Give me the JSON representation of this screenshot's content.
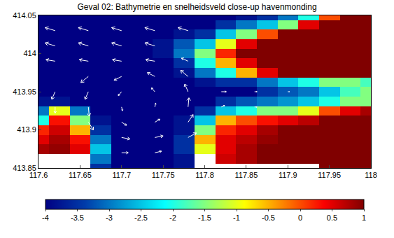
{
  "chart_data": {
    "type": "heatmap",
    "title": "Geval 02: Bathymetrie en snelheidsveld close-up havenmonding",
    "color": "jet",
    "xlim": [
      117.6,
      118
    ],
    "xticks": [
      117.6,
      117.65,
      117.7,
      117.75,
      117.8,
      117.85,
      117.9,
      117.95,
      118
    ],
    "ylim": [
      413.85,
      414.05
    ],
    "yticks": [
      413.85,
      413.9,
      413.95,
      414,
      414.05
    ],
    "zlim": [
      -4,
      1
    ],
    "zticks": [
      -4,
      -3.5,
      -3,
      -2.5,
      -2,
      -1.5,
      -1,
      -0.5,
      0,
      0.5,
      1
    ],
    "x": [
      117.6,
      117.625,
      117.65,
      117.675,
      117.7,
      117.725,
      117.75,
      117.775,
      117.8,
      117.825,
      117.85,
      117.875,
      117.9,
      117.925,
      117.95,
      117.975,
      118
    ],
    "y": [
      413.85,
      413.8625,
      413.875,
      413.8875,
      413.9,
      413.9125,
      413.925,
      413.9375,
      413.95,
      413.9625,
      413.975,
      413.9875,
      414,
      414.0125,
      414.025,
      414.0375,
      414.05
    ],
    "z": [
      [
        null,
        null,
        null,
        -3.5,
        -4,
        -4,
        -4,
        -3.8,
        null,
        null,
        null,
        null,
        null,
        null,
        1,
        1,
        1
      ],
      [
        null,
        null,
        null,
        -3,
        -4,
        -4,
        -4,
        -3.8,
        null,
        0.6,
        0.8,
        1,
        1,
        1,
        1,
        1,
        1
      ],
      [
        0.8,
        0.9,
        0.5,
        -2.5,
        -4,
        -4,
        -4,
        -3.5,
        -1,
        0.5,
        0.8,
        1,
        1,
        1,
        1,
        1,
        1
      ],
      [
        0.5,
        0.8,
        0.3,
        -3,
        -4,
        -4,
        -4,
        -3.5,
        -0.5,
        0.5,
        0.7,
        0.9,
        1,
        1,
        1,
        1,
        1
      ],
      [
        0.2,
        0.6,
        -0.5,
        -3.5,
        -4,
        -4,
        -4,
        -3.8,
        -1.5,
        0.2,
        0.5,
        0.8,
        1,
        1,
        1,
        1,
        1
      ],
      [
        -2,
        0.3,
        -1.5,
        -3.8,
        -4,
        -4,
        -4,
        -3.8,
        -2.5,
        -0.5,
        0,
        0.3,
        0.5,
        0.7,
        1,
        1,
        1
      ],
      [
        -3,
        -1,
        -3,
        -4,
        -4,
        -4,
        -4,
        -4,
        -3.5,
        -2.5,
        -2,
        -1.5,
        -1.5,
        -1,
        0,
        0.5,
        0.8
      ],
      [
        -3.8,
        -3.8,
        -4,
        -4,
        -4,
        -4,
        -4,
        -4,
        -4,
        -3.5,
        -3.2,
        -3,
        -2.8,
        -2.5,
        -2,
        -1.5,
        -1.5
      ],
      [
        -4,
        -4,
        -4,
        -4,
        -4,
        -4,
        -4,
        -4,
        -4,
        -4,
        -4,
        -3.5,
        -3.2,
        -3,
        -2.5,
        -1.8,
        -1.5
      ],
      [
        -4,
        -4,
        -4,
        -4,
        -4,
        -4,
        -4,
        -4,
        -3.8,
        -3.5,
        -3.5,
        -3,
        -2.5,
        -2,
        -1.5,
        -1.5,
        -1.8
      ],
      [
        -4,
        -4,
        -4,
        -4,
        -4,
        -4,
        -4,
        -3.8,
        -3,
        -2,
        -0.5,
        0.5,
        1,
        1,
        1,
        1,
        1
      ],
      [
        -4,
        -4,
        -4,
        -4,
        -4,
        -4,
        -4,
        -3.5,
        -2,
        -0.5,
        0.5,
        1,
        1,
        1,
        1,
        1,
        1
      ],
      [
        -4,
        -4,
        -4,
        -4,
        -4,
        -4,
        -3.8,
        -3,
        -1.5,
        0.2,
        1,
        1,
        1,
        1,
        1,
        1,
        1
      ],
      [
        -4,
        -4,
        -4,
        -4,
        -4,
        -4,
        -3.8,
        -3.2,
        -2.5,
        -1,
        0.5,
        1,
        1,
        1,
        1,
        1,
        1
      ],
      [
        -4,
        -4,
        -4,
        -4,
        -4,
        -4,
        -4,
        -3.8,
        -3.5,
        -2.5,
        -1.5,
        0,
        1,
        1,
        1,
        1,
        1
      ],
      [
        -4,
        -4,
        -4,
        -4,
        -4,
        -4,
        -4,
        -4,
        -4,
        -3.5,
        -3,
        -2.5,
        -1.5,
        0.5,
        1,
        1,
        1
      ],
      [
        -4,
        -4,
        -4,
        -4,
        -4,
        -4,
        -4,
        -4,
        -4,
        -4,
        -3.8,
        -3.5,
        -3,
        -2,
        0,
        1,
        1
      ]
    ],
    "vectors": {
      "color": "#ffffff",
      "x": [
        117.62,
        117.66,
        117.7,
        117.74,
        117.78,
        117.62,
        117.66,
        117.7,
        117.74,
        117.62,
        117.66,
        117.7,
        117.74,
        117.78,
        117.66,
        117.7,
        117.74,
        117.78,
        117.62,
        117.66,
        117.7,
        117.74,
        117.78,
        117.82,
        117.86,
        117.9,
        117.62,
        117.66,
        117.7,
        117.74,
        117.78,
        117.82,
        117.86,
        117.66,
        117.7,
        117.74,
        117.78,
        117.7,
        117.74,
        117.78,
        117.7,
        117.74
      ],
      "y": [
        414.03,
        414.03,
        414.03,
        414.03,
        414.03,
        414.01,
        414.01,
        414.01,
        414.01,
        413.99,
        413.99,
        413.99,
        413.99,
        413.99,
        413.97,
        413.97,
        413.97,
        413.97,
        413.95,
        413.95,
        413.95,
        413.95,
        413.95,
        413.95,
        413.95,
        413.95,
        413.93,
        413.93,
        413.93,
        413.93,
        413.93,
        413.93,
        413.93,
        413.91,
        413.91,
        413.91,
        413.91,
        413.89,
        413.89,
        413.89,
        413.87,
        413.87
      ],
      "u": [
        -0.012,
        -0.012,
        -0.012,
        -0.012,
        -0.012,
        -0.012,
        -0.012,
        -0.012,
        -0.012,
        -0.011,
        -0.011,
        -0.011,
        -0.011,
        -0.008,
        -0.009,
        -0.009,
        -0.009,
        -0.009,
        -0.004,
        -0.004,
        -0.004,
        -0.004,
        -0.004,
        0.006,
        0.003,
        0.002,
        0,
        0.001,
        0.001,
        0.001,
        0.001,
        0.004,
        0.003,
        0.006,
        0.006,
        0.006,
        0.006,
        0.01,
        0.01,
        0.01,
        0.008,
        0.008
      ],
      "v": [
        0.004,
        0.004,
        0.004,
        0.004,
        0.004,
        0.004,
        0.004,
        0.004,
        0.004,
        0.002,
        0.002,
        0.002,
        0.002,
        0.004,
        -0.008,
        -0.005,
        0.005,
        0.008,
        -0.01,
        -0.01,
        -0.005,
        0.005,
        0.01,
        0,
        0,
        0,
        -0.008,
        -0.012,
        -0.005,
        0.005,
        0.012,
        0.002,
        0,
        -0.01,
        -0.004,
        0.004,
        0.01,
        -0.002,
        0.002,
        0.006,
        0,
        0.002
      ]
    }
  }
}
